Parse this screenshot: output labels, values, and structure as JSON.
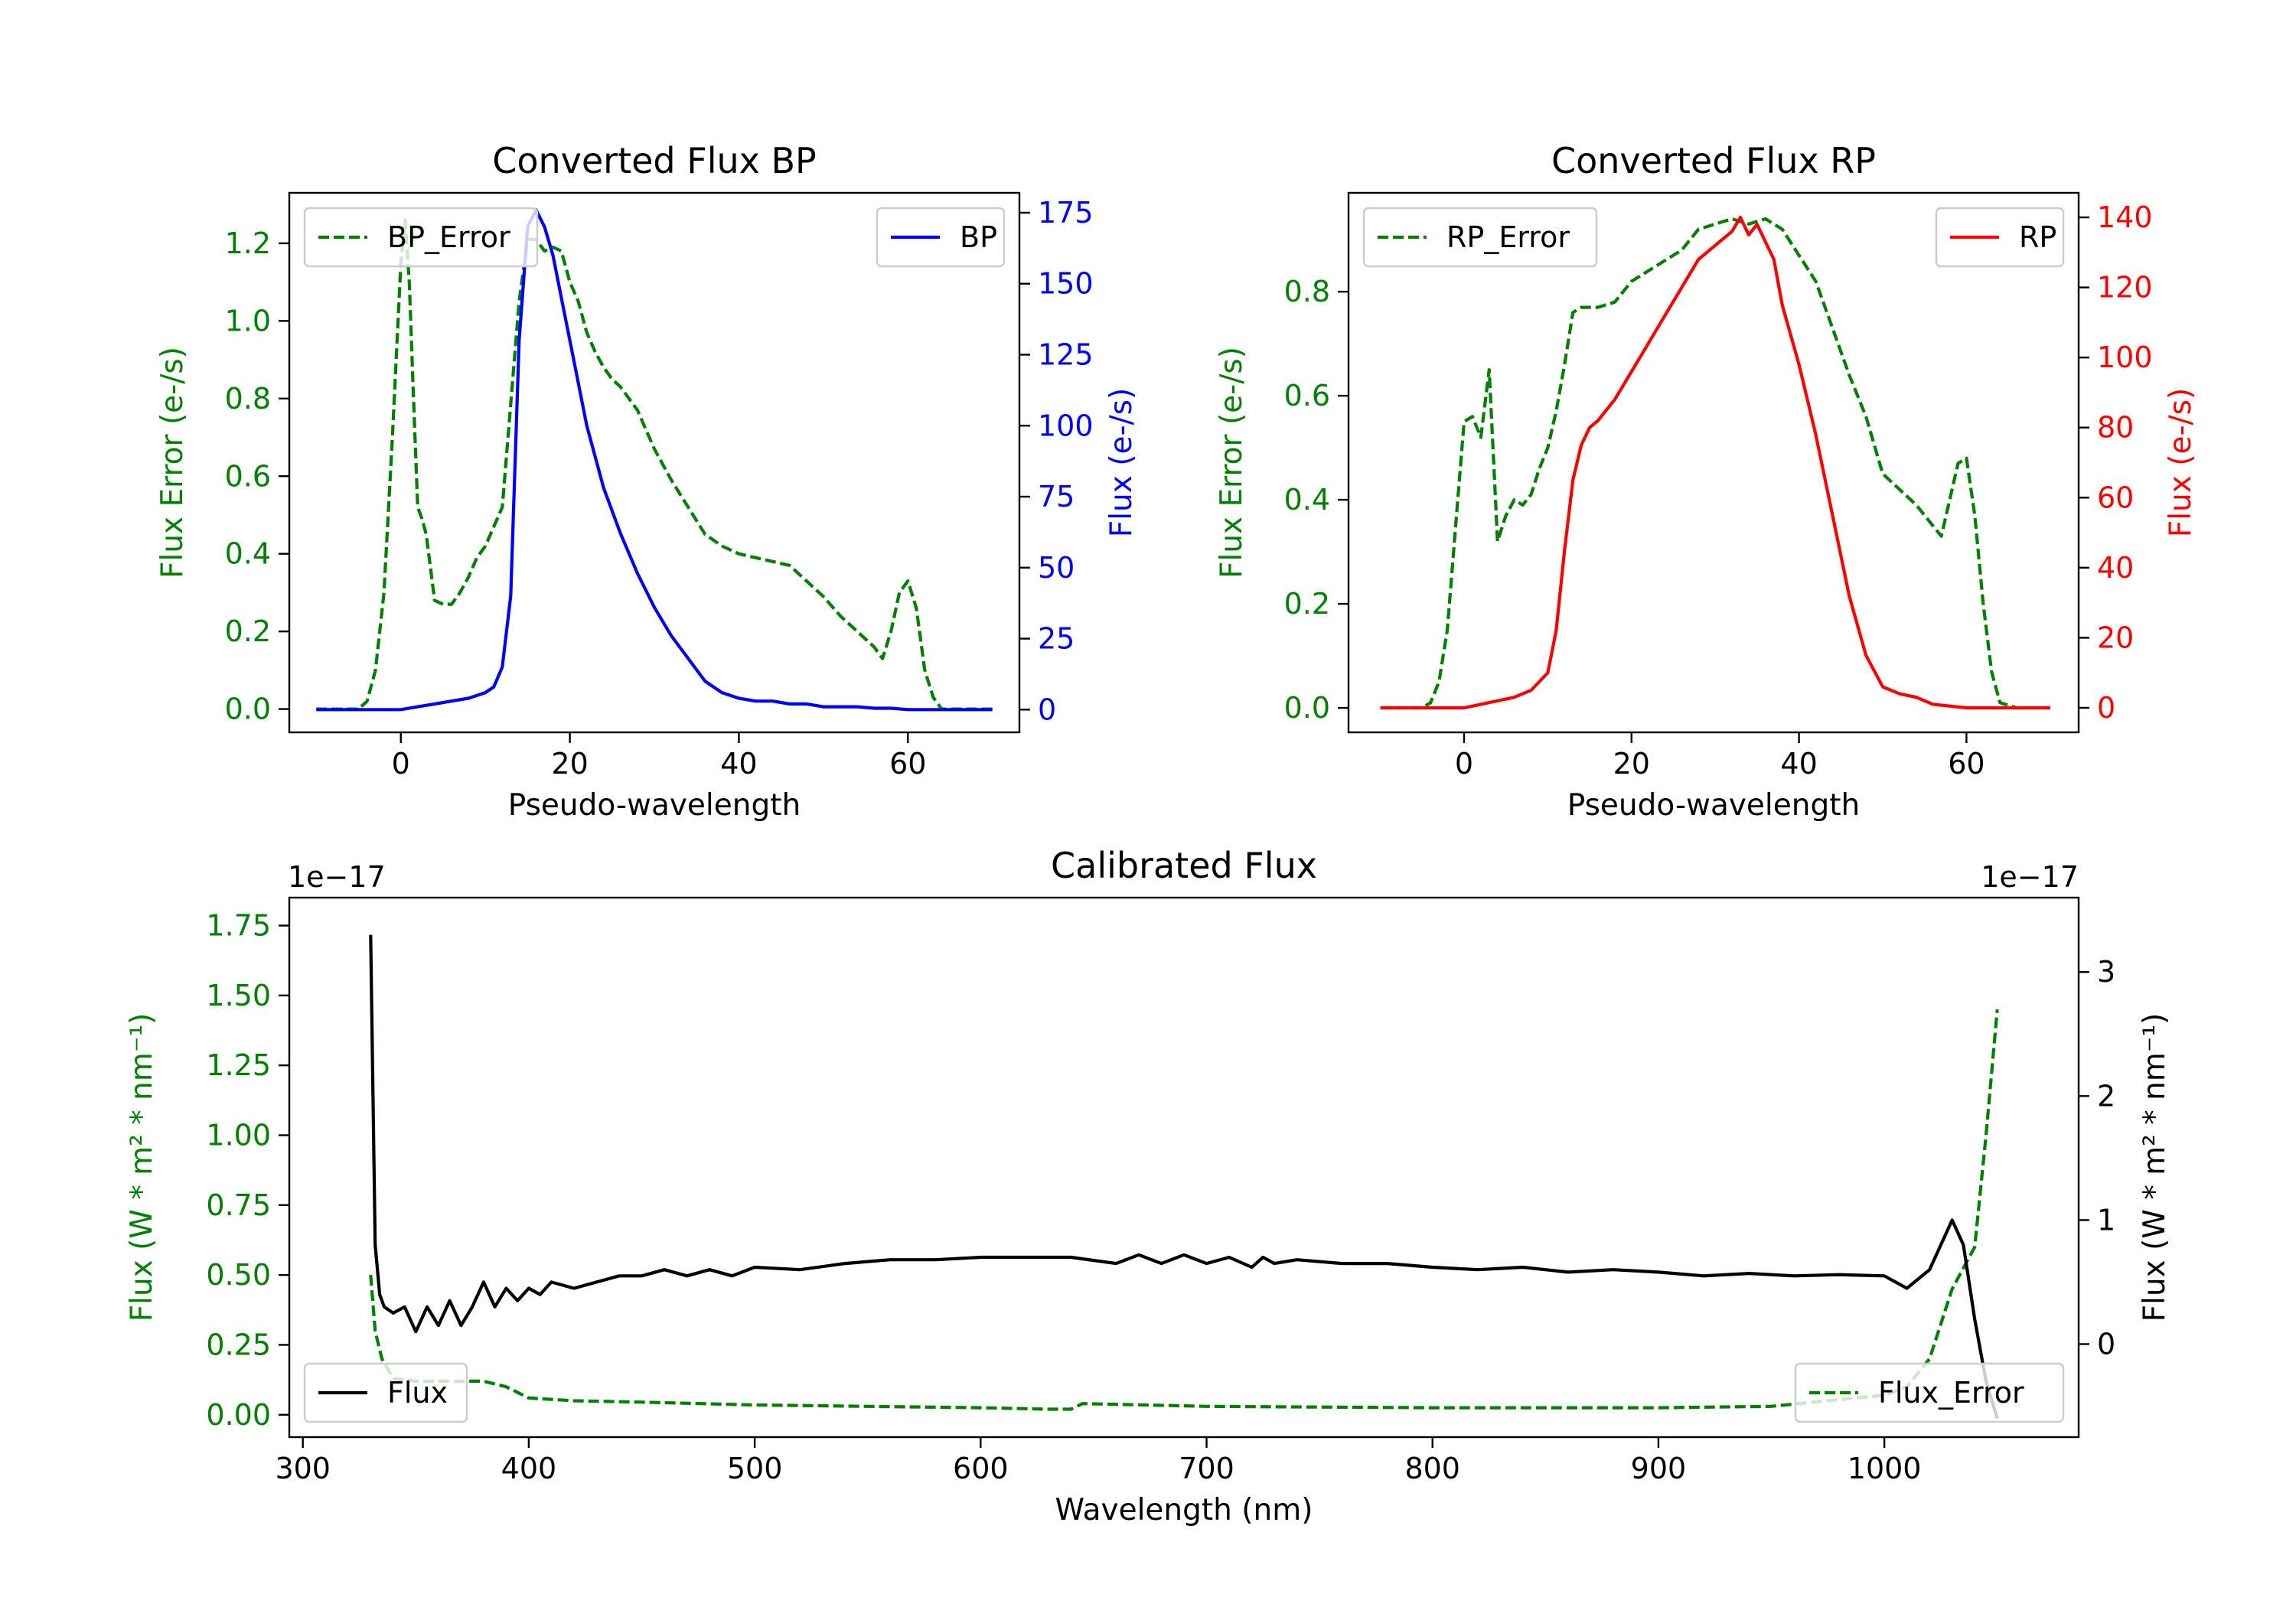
{
  "chart_data": [
    {
      "type": "line",
      "title": "Converted Flux BP",
      "xlabel": "Pseudo-wavelength",
      "xlim": [
        -13.2,
        73.2
      ],
      "xticks": [
        0,
        20,
        40,
        60
      ],
      "left_axis": {
        "label": "Flux Error (e-/s)",
        "color": "#008000",
        "ylim": [
          -0.06,
          1.33
        ],
        "ticks": [
          0.0,
          0.2,
          0.4,
          0.6,
          0.8,
          1.0,
          1.2
        ],
        "tick_labels": [
          "0.0",
          "0.2",
          "0.4",
          "0.6",
          "0.8",
          "1.0",
          "1.2"
        ]
      },
      "right_axis": {
        "label": "Flux (e-/s)",
        "color": "#0000ff",
        "ylim": [
          -8,
          182
        ],
        "ticks": [
          0,
          25,
          50,
          75,
          100,
          125,
          150,
          175
        ],
        "tick_labels": [
          "0",
          "25",
          "50",
          "75",
          "100",
          "125",
          "150",
          "175"
        ]
      },
      "series": [
        {
          "name": "BP_Error",
          "axis": "left",
          "color": "#008000",
          "style": "dashed",
          "legend": "upper left",
          "x": [
            -10,
            -5,
            -4,
            -3,
            -2,
            -1,
            0,
            0.5,
            1,
            1.5,
            2,
            2.5,
            3,
            4,
            5,
            6,
            7,
            8,
            9,
            10,
            12,
            14,
            15,
            16,
            17,
            18,
            19,
            20,
            21,
            22,
            23,
            24,
            25,
            26,
            28,
            30,
            32,
            34,
            36,
            38,
            40,
            42,
            44,
            46,
            48,
            50,
            52,
            54,
            56,
            57,
            58,
            59,
            60,
            61,
            62,
            63,
            64,
            66,
            70
          ],
          "values": [
            0.0,
            0.0,
            0.02,
            0.1,
            0.3,
            0.7,
            1.15,
            1.26,
            1.1,
            0.8,
            0.52,
            0.49,
            0.45,
            0.28,
            0.27,
            0.27,
            0.3,
            0.34,
            0.39,
            0.42,
            0.52,
            1.05,
            1.21,
            1.21,
            1.18,
            1.19,
            1.18,
            1.1,
            1.05,
            0.97,
            0.92,
            0.88,
            0.85,
            0.83,
            0.77,
            0.67,
            0.59,
            0.52,
            0.45,
            0.42,
            0.4,
            0.39,
            0.38,
            0.37,
            0.33,
            0.29,
            0.24,
            0.2,
            0.16,
            0.13,
            0.2,
            0.3,
            0.33,
            0.26,
            0.1,
            0.03,
            0.0,
            0.0,
            0.0
          ]
        },
        {
          "name": "BP",
          "axis": "right",
          "color": "#0000ff",
          "style": "solid",
          "legend": "upper right",
          "x": [
            -10,
            0,
            2,
            4,
            6,
            8,
            10,
            11,
            12,
            13,
            14,
            15,
            16,
            17,
            18,
            19,
            20,
            22,
            24,
            26,
            28,
            30,
            32,
            34,
            36,
            38,
            40,
            42,
            44,
            46,
            48,
            50,
            52,
            54,
            56,
            58,
            60,
            65,
            70
          ],
          "values": [
            0,
            0,
            1,
            2,
            3,
            4,
            6,
            8,
            15,
            40,
            130,
            170,
            176,
            170,
            160,
            145,
            130,
            100,
            78,
            62,
            48,
            36,
            26,
            18,
            10,
            6,
            4,
            3,
            3,
            2,
            2,
            1,
            1,
            1,
            0.5,
            0.5,
            0,
            0,
            0
          ]
        }
      ]
    },
    {
      "type": "line",
      "title": "Converted Flux RP",
      "xlabel": "Pseudo-wavelength",
      "xlim": [
        -13.8,
        73.4
      ],
      "xticks": [
        0,
        20,
        40,
        60
      ],
      "left_axis": {
        "label": "Flux Error (e-/s)",
        "color": "#008000",
        "ylim": [
          -0.047,
          0.99
        ],
        "ticks": [
          0.0,
          0.2,
          0.4,
          0.6,
          0.8
        ],
        "tick_labels": [
          "0.0",
          "0.2",
          "0.4",
          "0.6",
          "0.8"
        ]
      },
      "right_axis": {
        "label": "Flux (e-/s)",
        "color": "#ff0000",
        "ylim": [
          -7,
          147
        ],
        "ticks": [
          0,
          20,
          40,
          60,
          80,
          100,
          120,
          140
        ],
        "tick_labels": [
          "0",
          "20",
          "40",
          "60",
          "80",
          "100",
          "120",
          "140"
        ]
      },
      "series": [
        {
          "name": "RP_Error",
          "axis": "left",
          "color": "#008000",
          "style": "dashed",
          "legend": "upper left",
          "x": [
            -10,
            -5,
            -4,
            -3,
            -2,
            -1,
            0,
            1,
            2,
            3,
            4,
            5,
            6,
            7,
            8,
            9,
            10,
            11,
            12,
            13,
            14,
            16,
            18,
            20,
            22,
            24,
            26,
            28,
            30,
            32,
            34,
            36,
            38,
            40,
            42,
            44,
            46,
            48,
            50,
            52,
            54,
            56,
            57,
            58,
            59,
            60,
            61,
            62,
            63,
            64,
            66,
            70
          ],
          "values": [
            0.0,
            0.0,
            0.01,
            0.05,
            0.15,
            0.35,
            0.55,
            0.56,
            0.52,
            0.65,
            0.32,
            0.37,
            0.4,
            0.39,
            0.41,
            0.46,
            0.5,
            0.57,
            0.66,
            0.76,
            0.77,
            0.77,
            0.78,
            0.82,
            0.84,
            0.86,
            0.88,
            0.92,
            0.93,
            0.94,
            0.93,
            0.94,
            0.92,
            0.87,
            0.82,
            0.73,
            0.64,
            0.56,
            0.45,
            0.42,
            0.39,
            0.35,
            0.33,
            0.4,
            0.47,
            0.48,
            0.37,
            0.2,
            0.07,
            0.01,
            0.0,
            0.0
          ]
        },
        {
          "name": "RP",
          "axis": "right",
          "color": "#ff0000",
          "style": "solid",
          "legend": "upper right",
          "x": [
            -10,
            -2,
            0,
            2,
            4,
            6,
            8,
            10,
            11,
            12,
            13,
            14,
            15,
            16,
            18,
            20,
            22,
            24,
            26,
            28,
            30,
            32,
            33,
            34,
            35,
            36,
            37,
            38,
            40,
            42,
            44,
            46,
            48,
            50,
            52,
            54,
            56,
            58,
            60,
            65,
            70
          ],
          "values": [
            0,
            0,
            0,
            1,
            2,
            3,
            5,
            10,
            22,
            45,
            65,
            75,
            80,
            82,
            88,
            96,
            104,
            112,
            120,
            128,
            132,
            136,
            140,
            135,
            138,
            133,
            128,
            115,
            98,
            78,
            55,
            32,
            15,
            6,
            4,
            3,
            1,
            0.5,
            0,
            0,
            0
          ]
        }
      ]
    },
    {
      "type": "line",
      "title": "Calibrated Flux",
      "xlabel": "Wavelength (nm)",
      "xlim": [
        294,
        1086
      ],
      "xticks": [
        300,
        400,
        500,
        600,
        700,
        800,
        900,
        1000
      ],
      "left_axis": {
        "label": "Flux (W * m² * nm⁻¹)",
        "color": "#008000",
        "offset_text": "1e−17",
        "ylim": [
          -0.08,
          1.85
        ],
        "ticks": [
          0.0,
          0.25,
          0.5,
          0.75,
          1.0,
          1.25,
          1.5,
          1.75
        ],
        "tick_labels": [
          "0.00",
          "0.25",
          "0.50",
          "0.75",
          "1.00",
          "1.25",
          "1.50",
          "1.75"
        ]
      },
      "right_axis": {
        "label": "Flux (W * m² * nm⁻¹)",
        "color": "#000000",
        "offset_text": "1e−17",
        "ylim": [
          -0.75,
          3.6
        ],
        "ticks": [
          0,
          1,
          2,
          3
        ],
        "tick_labels": [
          "0",
          "1",
          "2",
          "3"
        ]
      },
      "series": [
        {
          "name": "Flux_Error",
          "axis": "left",
          "color": "#008000",
          "style": "dashed",
          "legend": "lower right",
          "x": [
            330,
            332,
            335,
            340,
            350,
            360,
            380,
            390,
            400,
            420,
            450,
            500,
            550,
            600,
            630,
            640,
            645,
            700,
            800,
            900,
            950,
            1000,
            1010,
            1020,
            1030,
            1040,
            1045,
            1050
          ],
          "values": [
            0.5,
            0.3,
            0.2,
            0.13,
            0.12,
            0.12,
            0.12,
            0.1,
            0.06,
            0.05,
            0.045,
            0.035,
            0.03,
            0.025,
            0.02,
            0.02,
            0.04,
            0.03,
            0.025,
            0.025,
            0.03,
            0.07,
            0.1,
            0.2,
            0.45,
            0.6,
            1.0,
            1.45
          ]
        },
        {
          "name": "Flux",
          "axis": "right",
          "color": "#000000",
          "style": "solid",
          "legend": "lower left",
          "x": [
            330,
            332,
            334,
            336,
            340,
            345,
            350,
            355,
            360,
            365,
            370,
            375,
            380,
            385,
            390,
            395,
            400,
            405,
            410,
            420,
            430,
            440,
            450,
            460,
            470,
            480,
            490,
            500,
            520,
            540,
            560,
            580,
            600,
            620,
            640,
            660,
            670,
            680,
            690,
            700,
            710,
            720,
            725,
            730,
            740,
            760,
            780,
            800,
            820,
            840,
            860,
            880,
            900,
            920,
            940,
            960,
            980,
            1000,
            1010,
            1020,
            1030,
            1035,
            1040,
            1045,
            1050
          ],
          "values": [
            3.3,
            0.8,
            0.4,
            0.3,
            0.25,
            0.3,
            0.1,
            0.3,
            0.15,
            0.35,
            0.15,
            0.3,
            0.5,
            0.3,
            0.45,
            0.35,
            0.45,
            0.4,
            0.5,
            0.45,
            0.5,
            0.55,
            0.55,
            0.6,
            0.55,
            0.6,
            0.55,
            0.62,
            0.6,
            0.65,
            0.68,
            0.68,
            0.7,
            0.7,
            0.7,
            0.65,
            0.72,
            0.65,
            0.72,
            0.65,
            0.7,
            0.62,
            0.7,
            0.65,
            0.68,
            0.65,
            0.65,
            0.62,
            0.6,
            0.62,
            0.58,
            0.6,
            0.58,
            0.55,
            0.57,
            0.55,
            0.56,
            0.55,
            0.45,
            0.6,
            1.0,
            0.8,
            0.2,
            -0.3,
            -0.6
          ]
        }
      ]
    }
  ]
}
